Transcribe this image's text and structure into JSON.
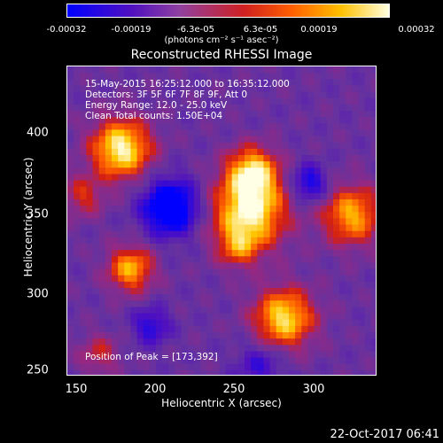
{
  "colorbar": {
    "ticks": [
      "-0.00032",
      "-0.00019",
      "-6.3e-05",
      "6.3e-05",
      "0.00019",
      "0.00032"
    ],
    "unit": "(photons cm⁻² s⁻¹ asec⁻²)"
  },
  "annotations": {
    "time_range": "15-May-2015 16:25:12.000 to 16:35:12.000",
    "detectors": "Detectors: 3F 5F 6F 7F 8F 9F, Att 0",
    "energy_range": "Energy Range: 12.0 - 25.0 keV",
    "clean": "Clean    Total counts: 1.50E+04",
    "peak": "Position of Peak = [173,392]"
  },
  "footer_timestamp": "22-Oct-2017 06:41",
  "chart_data": {
    "type": "heatmap",
    "title": "Reconstructed RHESSI Image",
    "xlabel": "Heliocentric X (arcsec)",
    "ylabel": "Heliocentric Y (arcsec)",
    "xlim": [
      140,
      336
    ],
    "ylim": [
      248,
      444
    ],
    "x_ticks": [
      "150",
      "200",
      "250",
      "300"
    ],
    "y_ticks": [
      "250",
      "300",
      "350",
      "400"
    ],
    "value_range": [
      -0.00032,
      0.00032
    ],
    "grid_size": 49,
    "sources": [
      {
        "x": 174,
        "y": 392,
        "r": 13,
        "amp": 1.0
      },
      {
        "x": 257,
        "y": 377,
        "r": 11,
        "amp": 0.85
      },
      {
        "x": 255,
        "y": 352,
        "r": 16,
        "amp": 1.0
      },
      {
        "x": 248,
        "y": 330,
        "r": 9,
        "amp": 0.45
      },
      {
        "x": 320,
        "y": 350,
        "r": 13,
        "amp": 0.75
      },
      {
        "x": 180,
        "y": 316,
        "r": 10,
        "amp": 0.75
      },
      {
        "x": 277,
        "y": 285,
        "r": 13,
        "amp": 0.9
      },
      {
        "x": 150,
        "y": 362,
        "r": 9,
        "amp": 0.4
      },
      {
        "x": 160,
        "y": 262,
        "r": 9,
        "amp": 0.35
      },
      {
        "x": 205,
        "y": 355,
        "r": 12,
        "amp": -0.9
      },
      {
        "x": 293,
        "y": 370,
        "r": 8,
        "amp": -0.55
      },
      {
        "x": 193,
        "y": 280,
        "r": 8,
        "amp": -0.45
      },
      {
        "x": 262,
        "y": 255,
        "r": 10,
        "amp": -0.35
      }
    ]
  }
}
